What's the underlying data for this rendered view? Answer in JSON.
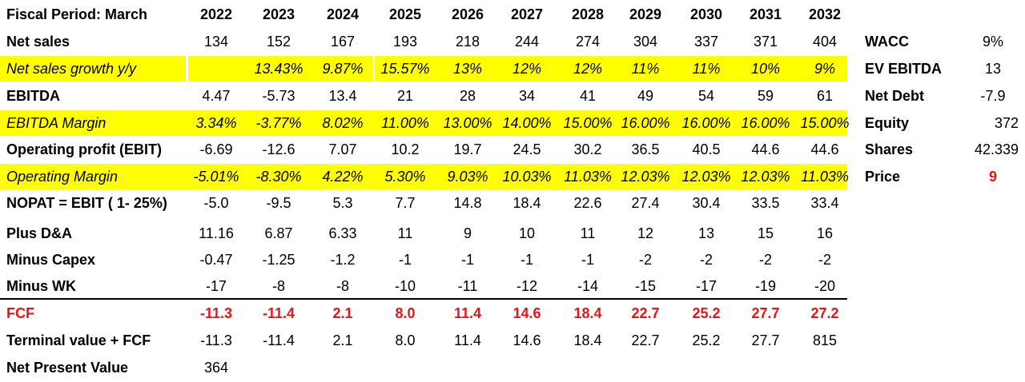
{
  "header": {
    "label": "Fiscal Period: March",
    "years": [
      "2022",
      "2023",
      "2024",
      "2025",
      "2026",
      "2027",
      "2028",
      "2029",
      "2030",
      "2031",
      "2032"
    ]
  },
  "rows": [
    {
      "label": "Net sales",
      "values": [
        "134",
        "152",
        "167",
        "193",
        "218",
        "244",
        "274",
        "304",
        "337",
        "371",
        "404"
      ],
      "style": "normal"
    },
    {
      "label": "Net sales growth y/y",
      "values": [
        "",
        "13.43%",
        "9.87%",
        "15.57%",
        "13%",
        "12%",
        "12%",
        "11%",
        "11%",
        "10%",
        "9%"
      ],
      "style": "highlight"
    },
    {
      "label": "EBITDA",
      "values": [
        "4.47",
        "-5.73",
        "13.4",
        "21",
        "28",
        "34",
        "41",
        "49",
        "54",
        "59",
        "61"
      ],
      "style": "normal"
    },
    {
      "label": "EBITDA Margin",
      "values": [
        "3.34%",
        "-3.77%",
        "8.02%",
        "11.00%",
        "13.00%",
        "14.00%",
        "15.00%",
        "16.00%",
        "16.00%",
        "16.00%",
        "15.00%"
      ],
      "style": "highlight"
    },
    {
      "label": "Operating profit (EBIT)",
      "values": [
        "-6.69",
        "-12.6",
        "7.07",
        "10.2",
        "19.7",
        "24.5",
        "30.2",
        "36.5",
        "40.5",
        "44.6",
        "44.6"
      ],
      "style": "normal"
    },
    {
      "label": "Operating Margin",
      "values": [
        "-5.01%",
        "-8.30%",
        "4.22%",
        "5.30%",
        "9.03%",
        "10.03%",
        "11.03%",
        "12.03%",
        "12.03%",
        "12.03%",
        "11.03%"
      ],
      "style": "highlight"
    },
    {
      "label": "NOPAT = EBIT ( 1- 25%)",
      "values": [
        "-5.0",
        "-9.5",
        "5.3",
        "7.7",
        "14.8",
        "18.4",
        "22.6",
        "27.4",
        "30.4",
        "33.5",
        "33.4"
      ],
      "style": "normal"
    },
    {
      "label": "Plus D&A",
      "values": [
        "11.16",
        "6.87",
        "6.33",
        "11",
        "9",
        "10",
        "11",
        "12",
        "13",
        "15",
        "16"
      ],
      "style": "normal"
    },
    {
      "label": "Minus Capex",
      "values": [
        "-0.47",
        "-1.25",
        "-1.2",
        "-1",
        "-1",
        "-1",
        "-1",
        "-2",
        "-2",
        "-2",
        "-2"
      ],
      "style": "normal"
    },
    {
      "label": "Minus WK",
      "values": [
        "-17",
        "-8",
        "-8",
        "-10",
        "-11",
        "-12",
        "-14",
        "-15",
        "-17",
        "-19",
        "-20"
      ],
      "style": "normal"
    },
    {
      "label": "FCF",
      "values": [
        "-11.3",
        "-11.4",
        "2.1",
        "8.0",
        "11.4",
        "14.6",
        "18.4",
        "22.7",
        "25.2",
        "27.7",
        "27.2"
      ],
      "style": "red"
    },
    {
      "label": "Terminal value + FCF",
      "values": [
        "-11.3",
        "-11.4",
        "2.1",
        "8.0",
        "11.4",
        "14.6",
        "18.4",
        "22.7",
        "25.2",
        "27.7",
        "815"
      ],
      "style": "normal"
    },
    {
      "label": "Net Present Value",
      "values": [
        "364"
      ],
      "style": "normal"
    }
  ],
  "side": [
    {
      "label": "WACC",
      "value": "9%"
    },
    {
      "label": "EV EBITDA",
      "value": "13"
    },
    {
      "label": "Net Debt",
      "value": "-7.9"
    },
    {
      "label": "Equity",
      "value": "372"
    },
    {
      "label": "Shares",
      "value": "42.339"
    },
    {
      "label": "Price",
      "value": "9"
    }
  ],
  "colors": {
    "highlight": "#ffff00",
    "accent_red": "#e8141a"
  }
}
